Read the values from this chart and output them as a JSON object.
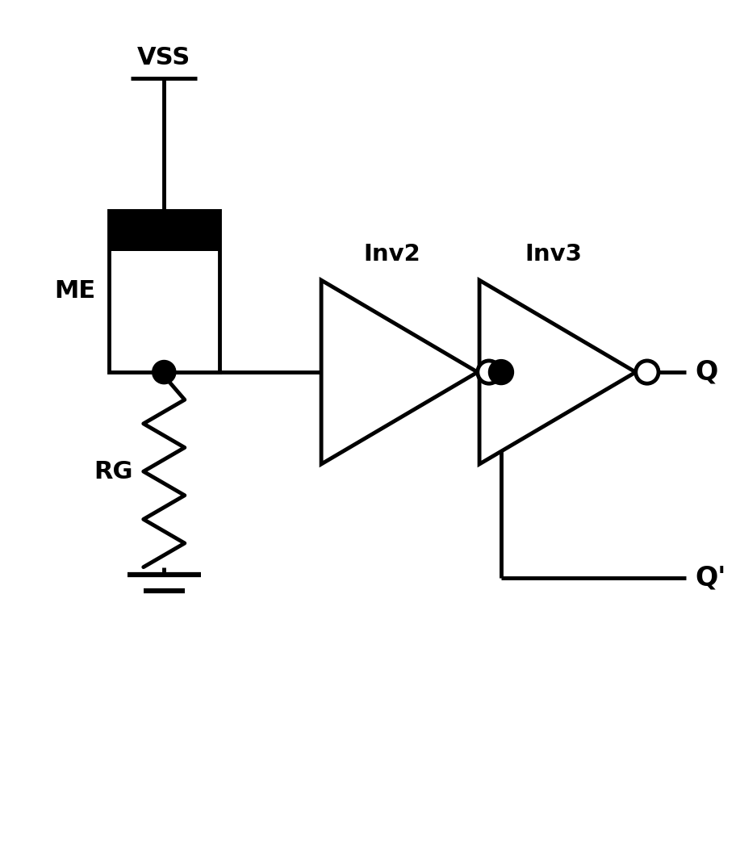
{
  "bg_color": "#ffffff",
  "line_color": "#000000",
  "line_width": 3.5,
  "figsize": [
    9.17,
    10.68
  ],
  "dpi": 100,
  "vss_label": "VSS",
  "me_label": "ME",
  "rg_label": "RG",
  "inv2_label": "Inv2",
  "inv3_label": "Inv3",
  "q_label": "Q",
  "qprime_label": "Q'",
  "xlim": [
    0,
    10
  ],
  "ylim": [
    0,
    11
  ]
}
